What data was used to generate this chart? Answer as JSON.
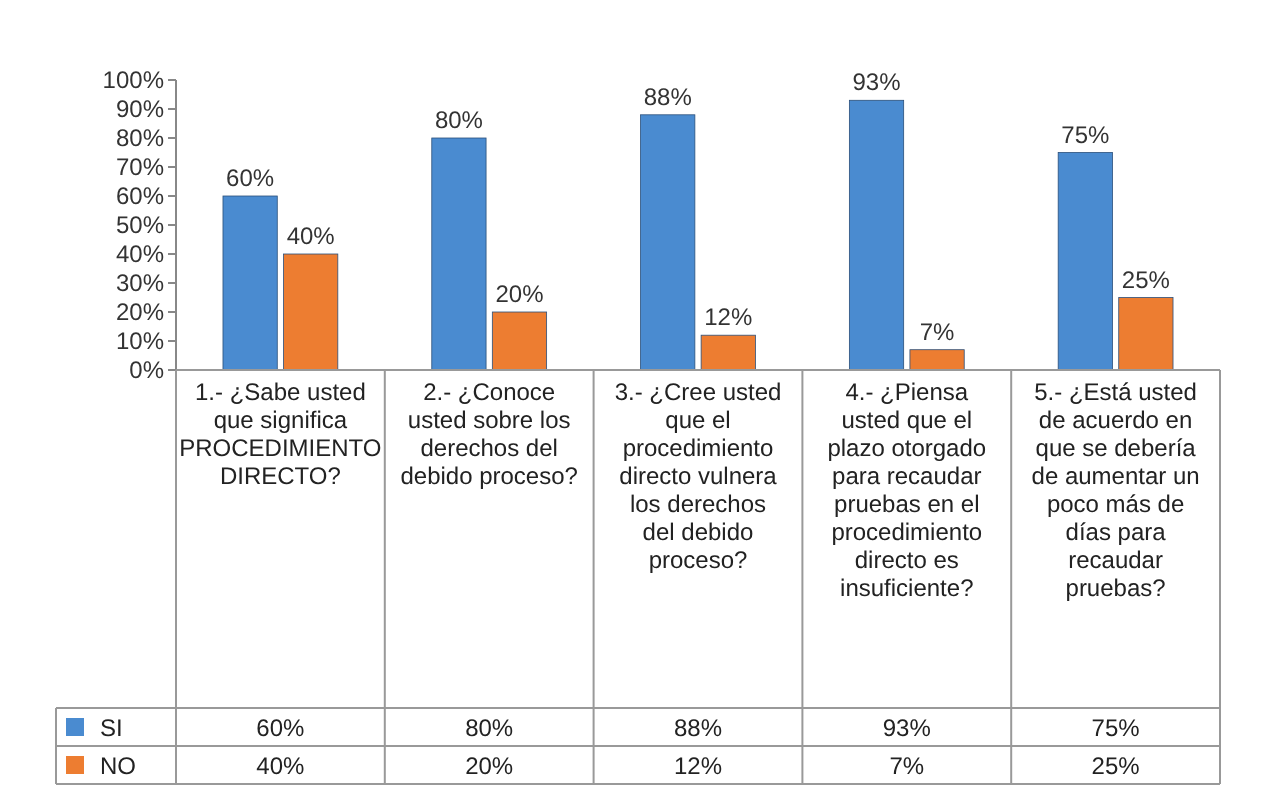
{
  "chart_data": {
    "type": "bar",
    "categories": [
      "1.- ¿Sabe usted que significa PROCEDIMIENTO DIRECTO?",
      "2.- ¿Conoce usted sobre los derechos del debido proceso?",
      "3.- ¿Cree usted que el procedimiento directo vulnera los derechos del debido proceso?",
      "4.- ¿Piensa usted que el plazo otorgado para recaudar pruebas en el procedimiento directo es insuficiente?",
      "5.- ¿Está usted de acuerdo en que se debería de aumentar un poco más de días para recaudar pruebas?"
    ],
    "series": [
      {
        "name": "SI",
        "color": "#4a8bd0",
        "values": [
          60,
          80,
          88,
          93,
          75
        ],
        "value_labels": [
          "60%",
          "80%",
          "88%",
          "93%",
          "75%"
        ]
      },
      {
        "name": "NO",
        "color": "#ed7d31",
        "values": [
          40,
          20,
          12,
          7,
          25
        ],
        "value_labels": [
          "40%",
          "20%",
          "12%",
          "7%",
          "25%"
        ]
      }
    ],
    "ylim": [
      0,
      100
    ],
    "yticks": [
      {
        "value": 0,
        "label": "0%"
      },
      {
        "value": 10,
        "label": "10%"
      },
      {
        "value": 20,
        "label": "20%"
      },
      {
        "value": 30,
        "label": "30%"
      },
      {
        "value": 40,
        "label": "40%"
      },
      {
        "value": 50,
        "label": "50%"
      },
      {
        "value": 60,
        "label": "60%"
      },
      {
        "value": 70,
        "label": "70%"
      },
      {
        "value": 80,
        "label": "80%"
      },
      {
        "value": 90,
        "label": "90%"
      },
      {
        "value": 100,
        "label": "100%"
      }
    ],
    "grid": false,
    "legend": "bottom"
  }
}
